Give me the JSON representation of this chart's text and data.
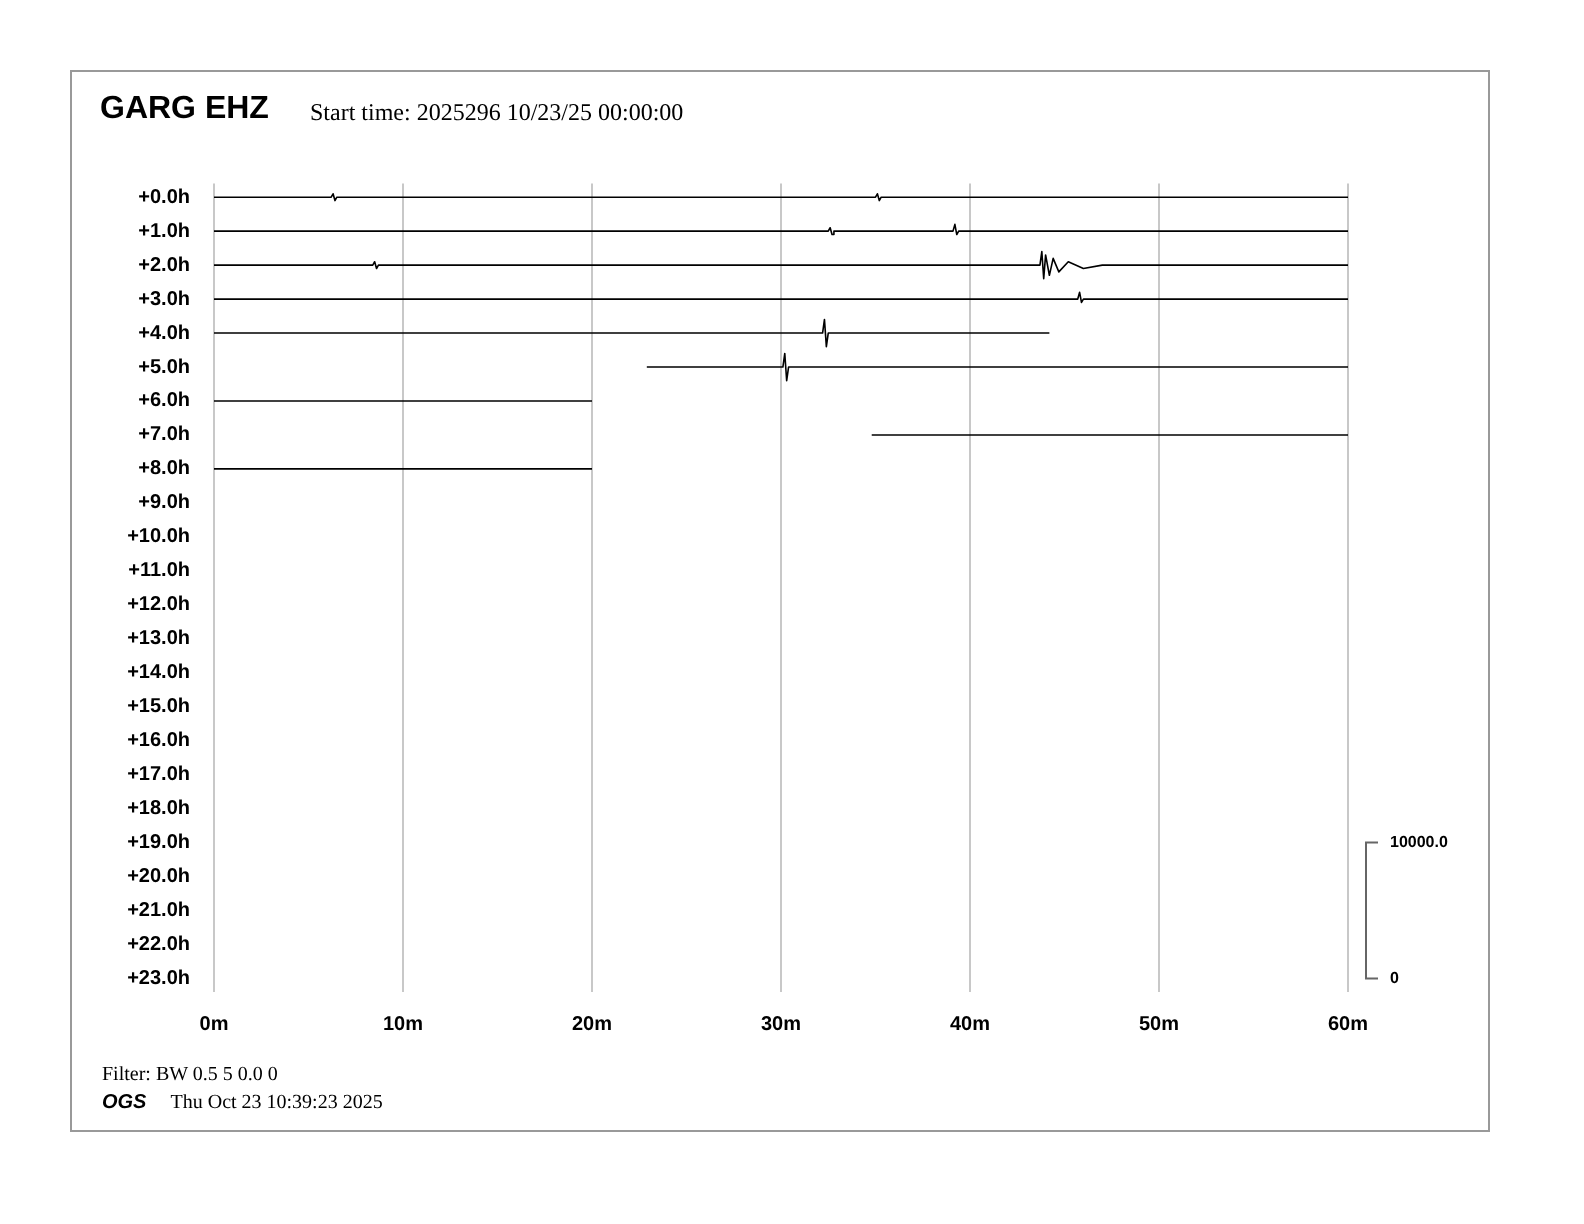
{
  "chart_data": {
    "type": "line",
    "title": "GARG EHZ",
    "subtitle": "Start time: 2025296 10/23/25 00:00:00",
    "annotations": [
      "Filter: BW 0.5 5 0.0 0",
      "OGS",
      "Thu Oct 23 10:39:23 2025"
    ],
    "series": [
      {
        "color": "#000000",
        "x": [
          0,
          6.2,
          6.3,
          6.4,
          6.5,
          35,
          35.1,
          35.2,
          35.3,
          60
        ],
        "values": [
          0,
          0,
          -0.1,
          0.1,
          0,
          0,
          -0.1,
          0.1,
          0,
          0
        ]
      },
      {
        "color": "#000000",
        "x": [
          0,
          32.5,
          32.6,
          32.7,
          32.8,
          39.1,
          39.2,
          39.3,
          39.4,
          60
        ],
        "values": [
          1,
          1,
          0.9,
          1.1,
          1,
          1,
          0.8,
          1.1,
          1,
          1
        ]
      },
      {
        "color": "#000000",
        "x": [
          0,
          8.4,
          8.5,
          8.6,
          8.7,
          43.7,
          43.8,
          43.9,
          44,
          44.2,
          44.4,
          44.7,
          45.2,
          46,
          47,
          60
        ],
        "values": [
          2,
          2,
          1.9,
          2.1,
          2,
          2,
          1.6,
          2.4,
          1.7,
          2.3,
          1.8,
          2.2,
          1.9,
          2.1,
          2,
          2
        ]
      },
      {
        "color": "#000000",
        "x": [
          0,
          45.7,
          45.8,
          45.9,
          46,
          60
        ],
        "values": [
          3,
          3,
          2.8,
          3.1,
          3,
          3
        ]
      },
      {
        "color": "#000000",
        "x": [
          0,
          32.2,
          32.3,
          32.4,
          32.5,
          44.2
        ],
        "values": [
          4,
          4,
          3.6,
          4.4,
          4,
          4
        ]
      },
      {
        "color": "#000000",
        "x": [
          22.9,
          30.1,
          30.2,
          30.3,
          30.4,
          60
        ],
        "values": [
          5,
          5,
          4.6,
          5.4,
          5,
          5
        ]
      },
      {
        "color": "#000000",
        "x": [
          0,
          20
        ],
        "values": [
          6,
          6
        ]
      },
      {
        "color": "#000000",
        "x": [
          34.8,
          60
        ],
        "values": [
          7,
          7
        ]
      },
      {
        "color": "#000000",
        "x": [
          0,
          20
        ],
        "values": [
          8,
          8
        ]
      }
    ],
    "xlim": [
      0,
      60
    ],
    "xticks": [
      {
        "value": 0,
        "label": "0m"
      },
      {
        "value": 10,
        "label": "10m"
      },
      {
        "value": 20,
        "label": "20m"
      },
      {
        "value": 30,
        "label": "30m"
      },
      {
        "value": 40,
        "label": "40m"
      },
      {
        "value": 50,
        "label": "50m"
      },
      {
        "value": 60,
        "label": "60m"
      }
    ],
    "ylim": [
      23.4,
      -0.4
    ],
    "yticks": [
      {
        "value": 0,
        "label": "+0.0h"
      },
      {
        "value": 1,
        "label": "+1.0h"
      },
      {
        "value": 2,
        "label": "+2.0h"
      },
      {
        "value": 3,
        "label": "+3.0h"
      },
      {
        "value": 4,
        "label": "+4.0h"
      },
      {
        "value": 5,
        "label": "+5.0h"
      },
      {
        "value": 6,
        "label": "+6.0h"
      },
      {
        "value": 7,
        "label": "+7.0h"
      },
      {
        "value": 8,
        "label": "+8.0h"
      },
      {
        "value": 9,
        "label": "+9.0h"
      },
      {
        "value": 10,
        "label": "+10.0h"
      },
      {
        "value": 11,
        "label": "+11.0h"
      },
      {
        "value": 12,
        "label": "+12.0h"
      },
      {
        "value": 13,
        "label": "+13.0h"
      },
      {
        "value": 14,
        "label": "+14.0h"
      },
      {
        "value": 15,
        "label": "+15.0h"
      },
      {
        "value": 16,
        "label": "+16.0h"
      },
      {
        "value": 17,
        "label": "+17.0h"
      },
      {
        "value": 18,
        "label": "+18.0h"
      },
      {
        "value": 19,
        "label": "+19.0h"
      },
      {
        "value": 20,
        "label": "+20.0h"
      },
      {
        "value": 21,
        "label": "+21.0h"
      },
      {
        "value": 22,
        "label": "+22.0h"
      },
      {
        "value": 23,
        "label": "+23.0h"
      }
    ],
    "y2lim": [
      -1000,
      58500
    ],
    "y2ticks": [
      {
        "value": 0,
        "label": "0"
      },
      {
        "value": 10000,
        "label": "10000.0"
      }
    ],
    "grid": "x",
    "legend": false,
    "marker": "none",
    "line_style": "solid"
  }
}
